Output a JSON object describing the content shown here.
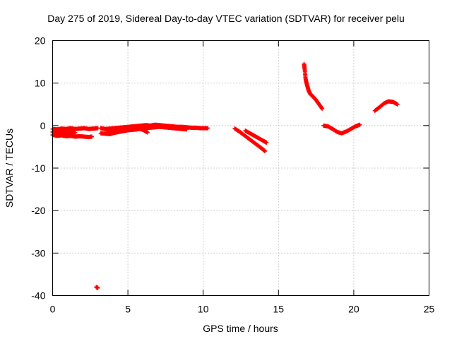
{
  "chart_data": {
    "type": "scatter",
    "title": "Day 275 of 2019, Sidereal Day-to-day VTEC variation (SDTVAR) for receiver pelu",
    "xlabel": "GPS time / hours",
    "ylabel": "SDTVAR / TECUs",
    "xlim": [
      0,
      25
    ],
    "ylim": [
      -40,
      20
    ],
    "xticks": [
      0,
      5,
      10,
      15,
      20,
      25
    ],
    "yticks": [
      -40,
      -30,
      -20,
      -10,
      0,
      10,
      20
    ],
    "grid": true,
    "marker": "plus",
    "series": [
      {
        "name": "SDTVAR",
        "color": "#ff0000",
        "segments": [
          {
            "x": [
              0.0,
              0.3,
              0.6,
              0.9,
              1.2,
              1.5,
              1.8,
              2.1,
              2.4,
              2.7,
              3.0
            ],
            "y": [
              -0.8,
              -0.9,
              -0.7,
              -0.8,
              -0.6,
              -0.8,
              -0.7,
              -0.6,
              -0.8,
              -0.7,
              -0.6
            ]
          },
          {
            "x": [
              0.0,
              0.3,
              0.6,
              0.9,
              1.2,
              1.5,
              1.8,
              2.1,
              2.4,
              2.6
            ],
            "y": [
              -2.2,
              -2.4,
              -2.3,
              -2.5,
              -2.4,
              -2.6,
              -2.5,
              -2.6,
              -2.7,
              -2.6
            ]
          },
          {
            "x": [
              0.0,
              0.3,
              0.6,
              0.9,
              1.2,
              1.5
            ],
            "y": [
              -1.5,
              -1.7,
              -1.6,
              -1.8,
              -1.6,
              -1.7
            ]
          },
          {
            "x": [
              2.9,
              3.0
            ],
            "y": [
              -38.0,
              -38.2
            ]
          },
          {
            "x": [
              3.2,
              3.5,
              3.8,
              4.1,
              4.4,
              4.7,
              5.0,
              5.3,
              5.6,
              5.9,
              6.2,
              6.5,
              6.8,
              7.1,
              7.4,
              7.7,
              8.0,
              8.3,
              8.6,
              8.9,
              9.2,
              9.5,
              9.8,
              10.1,
              10.3
            ],
            "y": [
              -0.6,
              -0.8,
              -0.7,
              -0.6,
              -0.5,
              -0.4,
              -0.3,
              -0.2,
              -0.1,
              0.0,
              0.1,
              0.0,
              0.2,
              0.1,
              0.0,
              -0.1,
              -0.2,
              -0.3,
              -0.3,
              -0.4,
              -0.5,
              -0.5,
              -0.6,
              -0.6,
              -0.6
            ]
          },
          {
            "x": [
              3.2,
              3.5,
              3.8,
              4.1,
              4.4,
              4.7,
              5.0,
              5.3,
              5.6,
              5.9,
              6.2,
              6.5,
              6.8,
              7.1,
              7.4,
              7.7,
              8.0,
              8.3,
              8.6,
              8.9
            ],
            "y": [
              -1.8,
              -1.9,
              -2.0,
              -1.7,
              -1.5,
              -1.3,
              -1.1,
              -1.0,
              -0.9,
              -0.7,
              -0.6,
              -0.5,
              -0.4,
              -0.3,
              -0.4,
              -0.5,
              -0.6,
              -0.7,
              -0.8,
              -0.9
            ]
          },
          {
            "x": [
              3.6,
              4.0,
              4.4,
              4.8,
              5.2,
              5.6,
              6.0,
              6.3
            ],
            "y": [
              -1.2,
              -1.3,
              -1.1,
              -0.9,
              -0.8,
              -0.6,
              -1.0,
              -1.6
            ]
          },
          {
            "x": [
              12.1,
              12.4,
              12.7,
              13.0,
              13.3,
              13.6,
              13.9,
              14.1
            ],
            "y": [
              -0.7,
              -1.4,
              -2.2,
              -3.0,
              -3.8,
              -4.6,
              -5.4,
              -6.0
            ]
          },
          {
            "x": [
              12.8,
              13.1,
              13.4,
              13.7,
              14.0,
              14.2
            ],
            "y": [
              -1.2,
              -1.8,
              -2.4,
              -3.0,
              -3.6,
              -4.0
            ]
          },
          {
            "x": [
              16.7,
              16.75,
              16.8,
              16.9,
              17.0,
              17.1,
              17.3,
              17.5,
              17.7,
              17.9
            ],
            "y": [
              14.5,
              13.0,
              11.0,
              9.5,
              8.3,
              7.5,
              6.8,
              6.0,
              5.0,
              4.0
            ]
          },
          {
            "x": [
              18.0,
              18.3,
              18.6,
              18.9,
              19.2,
              19.5,
              19.8,
              20.1,
              20.4
            ],
            "y": [
              0.0,
              -0.2,
              -0.8,
              -1.5,
              -1.8,
              -1.4,
              -0.8,
              -0.2,
              0.2
            ]
          },
          {
            "x": [
              21.4,
              21.7,
              22.0,
              22.3,
              22.6,
              22.9
            ],
            "y": [
              3.5,
              4.3,
              5.2,
              5.7,
              5.6,
              5.0
            ]
          }
        ]
      }
    ]
  }
}
